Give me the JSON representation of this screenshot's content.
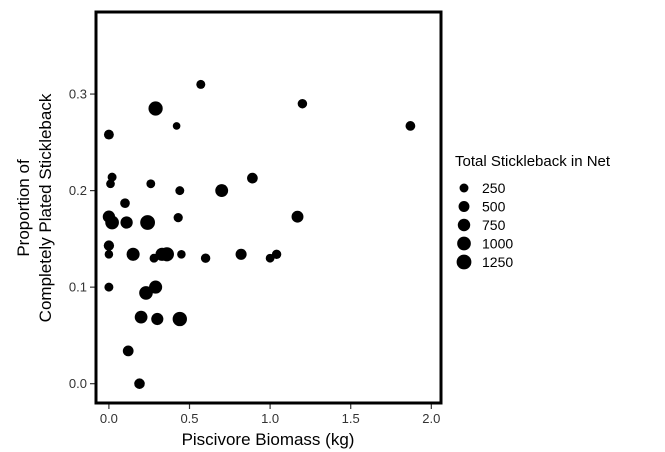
{
  "chart_data": {
    "type": "scatter",
    "title": "",
    "xlabel": "Piscivore Biomass (kg)",
    "ylabel_lines": [
      "Proportion of",
      "Completely Plated Stickleback"
    ],
    "xlim": [
      -0.08,
      2.06
    ],
    "ylim": [
      -0.02,
      0.385
    ],
    "x_ticks": [
      {
        "value": 0.0,
        "label": "0.0"
      },
      {
        "value": 0.5,
        "label": "0.5"
      },
      {
        "value": 1.0,
        "label": "1.0"
      },
      {
        "value": 1.5,
        "label": "1.5"
      },
      {
        "value": 2.0,
        "label": "2.0"
      }
    ],
    "y_ticks": [
      {
        "value": 0.0,
        "label": "0.0"
      },
      {
        "value": 0.1,
        "label": "0.1"
      },
      {
        "value": 0.2,
        "label": "0.2"
      },
      {
        "value": 0.3,
        "label": "0.3"
      }
    ],
    "grid": false,
    "point_color": "#000000",
    "size_legend": {
      "title": "Total Stickleback in Net",
      "placement": "right",
      "entries": [
        {
          "value": 250,
          "label": "250"
        },
        {
          "value": 500,
          "label": "500"
        },
        {
          "value": 750,
          "label": "750"
        },
        {
          "value": 1000,
          "label": "1000"
        },
        {
          "value": 1250,
          "label": "1250"
        }
      ]
    },
    "points": [
      {
        "x": 0.57,
        "y": 0.31,
        "size": 260
      },
      {
        "x": 1.2,
        "y": 0.29,
        "size": 310
      },
      {
        "x": 0.29,
        "y": 0.285,
        "size": 1120
      },
      {
        "x": 1.87,
        "y": 0.267,
        "size": 340
      },
      {
        "x": 0.42,
        "y": 0.267,
        "size": 130
      },
      {
        "x": 0.0,
        "y": 0.258,
        "size": 360
      },
      {
        "x": 0.02,
        "y": 0.214,
        "size": 250
      },
      {
        "x": 0.01,
        "y": 0.207,
        "size": 230
      },
      {
        "x": 0.89,
        "y": 0.213,
        "size": 470
      },
      {
        "x": 0.26,
        "y": 0.207,
        "size": 240
      },
      {
        "x": 0.7,
        "y": 0.2,
        "size": 830
      },
      {
        "x": 0.44,
        "y": 0.2,
        "size": 250
      },
      {
        "x": 0.1,
        "y": 0.187,
        "size": 330
      },
      {
        "x": 0.0,
        "y": 0.173,
        "size": 730
      },
      {
        "x": 0.02,
        "y": 0.167,
        "size": 1000
      },
      {
        "x": 0.11,
        "y": 0.167,
        "size": 730
      },
      {
        "x": 0.24,
        "y": 0.167,
        "size": 1250
      },
      {
        "x": 0.43,
        "y": 0.172,
        "size": 280
      },
      {
        "x": 1.17,
        "y": 0.173,
        "size": 660
      },
      {
        "x": 0.0,
        "y": 0.143,
        "size": 420
      },
      {
        "x": 0.0,
        "y": 0.134,
        "size": 210
      },
      {
        "x": 0.15,
        "y": 0.134,
        "size": 880
      },
      {
        "x": 0.28,
        "y": 0.13,
        "size": 240
      },
      {
        "x": 0.33,
        "y": 0.134,
        "size": 900
      },
      {
        "x": 0.36,
        "y": 0.134,
        "size": 1100
      },
      {
        "x": 0.45,
        "y": 0.134,
        "size": 210
      },
      {
        "x": 0.6,
        "y": 0.13,
        "size": 300
      },
      {
        "x": 0.82,
        "y": 0.134,
        "size": 530
      },
      {
        "x": 1.0,
        "y": 0.13,
        "size": 230
      },
      {
        "x": 1.04,
        "y": 0.134,
        "size": 300
      },
      {
        "x": 0.0,
        "y": 0.1,
        "size": 250
      },
      {
        "x": 0.29,
        "y": 0.1,
        "size": 880
      },
      {
        "x": 0.23,
        "y": 0.094,
        "size": 990
      },
      {
        "x": 0.2,
        "y": 0.069,
        "size": 810
      },
      {
        "x": 0.3,
        "y": 0.067,
        "size": 700
      },
      {
        "x": 0.44,
        "y": 0.067,
        "size": 1150
      },
      {
        "x": 0.12,
        "y": 0.034,
        "size": 480
      },
      {
        "x": 0.19,
        "y": 0.0,
        "size": 450
      }
    ]
  }
}
